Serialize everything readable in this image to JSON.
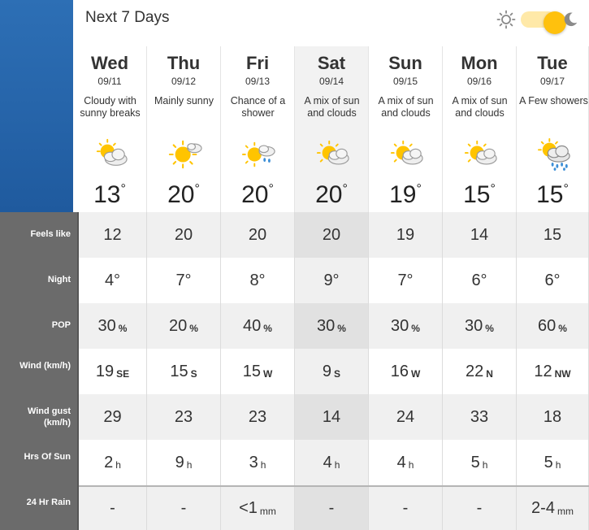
{
  "header": {
    "title": "Next 7 Days"
  },
  "theme_toggle": {
    "sun_icon": "sun-icon",
    "moon_icon": "moon-icon",
    "state": "on"
  },
  "days": [
    {
      "name": "Wed",
      "date": "09/11",
      "condition": "Cloudy with sunny breaks",
      "icon": "partly-cloudy-icon",
      "temp": "13",
      "deg": "°"
    },
    {
      "name": "Thu",
      "date": "09/12",
      "condition": "Mainly sunny",
      "icon": "mostly-sunny-icon",
      "temp": "20",
      "deg": "°"
    },
    {
      "name": "Fri",
      "date": "09/13",
      "condition": "Chance of a shower",
      "icon": "sun-shower-icon",
      "temp": "20",
      "deg": "°"
    },
    {
      "name": "Sat",
      "date": "09/14",
      "condition": "A mix of sun and clouds",
      "icon": "sun-cloud-icon",
      "temp": "20",
      "deg": "°"
    },
    {
      "name": "Sun",
      "date": "09/15",
      "condition": "A mix of sun and clouds",
      "icon": "sun-cloud-icon",
      "temp": "19",
      "deg": "°"
    },
    {
      "name": "Mon",
      "date": "09/16",
      "condition": "A mix of sun and clouds",
      "icon": "sun-cloud-icon",
      "temp": "15",
      "deg": "°"
    },
    {
      "name": "Tue",
      "date": "09/17",
      "condition": "A Few showers",
      "icon": "showers-icon",
      "temp": "15",
      "deg": "°"
    }
  ],
  "row_labels": {
    "feels": "Feels like",
    "night": "Night",
    "pop": "POP",
    "wind": "Wind (km/h)",
    "gust": "Wind gust (km/h)",
    "sun": "Hrs Of Sun",
    "rain": "24 Hr Rain"
  },
  "feels_like": [
    "12",
    "20",
    "20",
    "20",
    "19",
    "14",
    "15"
  ],
  "night": [
    "4°",
    "7°",
    "8°",
    "9°",
    "7°",
    "6°",
    "6°"
  ],
  "pop": [
    {
      "v": "30",
      "u": "%"
    },
    {
      "v": "20",
      "u": "%"
    },
    {
      "v": "40",
      "u": "%"
    },
    {
      "v": "30",
      "u": "%"
    },
    {
      "v": "30",
      "u": "%"
    },
    {
      "v": "30",
      "u": "%"
    },
    {
      "v": "60",
      "u": "%"
    }
  ],
  "wind": [
    {
      "v": "19",
      "u": "SE"
    },
    {
      "v": "15",
      "u": "S"
    },
    {
      "v": "15",
      "u": "W"
    },
    {
      "v": "9",
      "u": "S"
    },
    {
      "v": "16",
      "u": "W"
    },
    {
      "v": "22",
      "u": "N"
    },
    {
      "v": "12",
      "u": "NW"
    }
  ],
  "gust": [
    "29",
    "23",
    "23",
    "14",
    "24",
    "33",
    "18"
  ],
  "sun_hours": [
    {
      "v": "2",
      "u": "h"
    },
    {
      "v": "9",
      "u": "h"
    },
    {
      "v": "3",
      "u": "h"
    },
    {
      "v": "4",
      "u": "h"
    },
    {
      "v": "4",
      "u": "h"
    },
    {
      "v": "5",
      "u": "h"
    },
    {
      "v": "5",
      "u": "h"
    }
  ],
  "rain": [
    {
      "v": "-",
      "u": ""
    },
    {
      "v": "-",
      "u": ""
    },
    {
      "v": "<1",
      "u": "mm"
    },
    {
      "v": "-",
      "u": ""
    },
    {
      "v": "-",
      "u": ""
    },
    {
      "v": "-",
      "u": ""
    },
    {
      "v": "2-4",
      "u": "mm"
    }
  ]
}
